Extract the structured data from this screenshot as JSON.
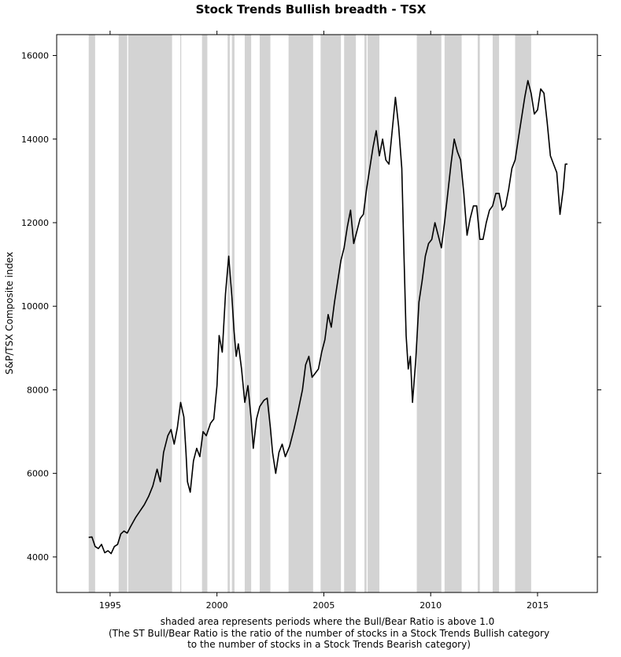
{
  "chart_data": {
    "type": "line",
    "title": "Stock Trends Bullish breadth - TSX",
    "ylabel": "S&P/TSX Composite index",
    "xlabel_lines": [
      "shaded area represents periods where the Bull/Bear Ratio is above 1.0",
      "(The ST Bull/Bear Ratio is the ratio of the number of stocks in a Stock Trends Bullish category",
      "to the number of stocks in a Stock Trends Bearish category)"
    ],
    "xlim": [
      1992.5,
      2017.8
    ],
    "ylim": [
      3150,
      16500
    ],
    "x_ticks": [
      1995,
      2000,
      2005,
      2010,
      2015
    ],
    "x_tick_labels": [
      "1995",
      "2000",
      "2005",
      "2010",
      "2015"
    ],
    "y_ticks": [
      4000,
      6000,
      8000,
      10000,
      12000,
      14000,
      16000
    ],
    "y_tick_labels": [
      "4000",
      "6000",
      "8000",
      "10000",
      "12000",
      "14000",
      "16000"
    ],
    "grid": false,
    "series": [
      {
        "name": "S&P/TSX Composite index",
        "color": "#000000",
        "points": [
          [
            1994.0,
            4470
          ],
          [
            1994.15,
            4480
          ],
          [
            1994.3,
            4250
          ],
          [
            1994.45,
            4200
          ],
          [
            1994.6,
            4300
          ],
          [
            1994.75,
            4100
          ],
          [
            1994.9,
            4150
          ],
          [
            1995.05,
            4080
          ],
          [
            1995.2,
            4250
          ],
          [
            1995.35,
            4300
          ],
          [
            1995.5,
            4550
          ],
          [
            1995.65,
            4620
          ],
          [
            1995.8,
            4570
          ],
          [
            1995.95,
            4720
          ],
          [
            1996.2,
            4950
          ],
          [
            1996.4,
            5100
          ],
          [
            1996.6,
            5250
          ],
          [
            1996.8,
            5450
          ],
          [
            1997.0,
            5700
          ],
          [
            1997.2,
            6100
          ],
          [
            1997.35,
            5800
          ],
          [
            1997.5,
            6500
          ],
          [
            1997.7,
            6900
          ],
          [
            1997.85,
            7050
          ],
          [
            1998.0,
            6700
          ],
          [
            1998.15,
            7100
          ],
          [
            1998.3,
            7700
          ],
          [
            1998.45,
            7350
          ],
          [
            1998.55,
            6500
          ],
          [
            1998.62,
            5800
          ],
          [
            1998.75,
            5550
          ],
          [
            1998.9,
            6300
          ],
          [
            1999.05,
            6600
          ],
          [
            1999.2,
            6400
          ],
          [
            1999.35,
            7000
          ],
          [
            1999.5,
            6900
          ],
          [
            1999.7,
            7200
          ],
          [
            1999.85,
            7300
          ],
          [
            2000.0,
            8100
          ],
          [
            2000.1,
            9300
          ],
          [
            2000.25,
            8900
          ],
          [
            2000.4,
            10300
          ],
          [
            2000.55,
            11200
          ],
          [
            2000.7,
            10200
          ],
          [
            2000.8,
            9400
          ],
          [
            2000.9,
            8800
          ],
          [
            2001.0,
            9100
          ],
          [
            2001.15,
            8500
          ],
          [
            2001.3,
            7700
          ],
          [
            2001.45,
            8100
          ],
          [
            2001.6,
            7300
          ],
          [
            2001.7,
            6600
          ],
          [
            2001.85,
            7300
          ],
          [
            2002.0,
            7600
          ],
          [
            2002.2,
            7750
          ],
          [
            2002.35,
            7800
          ],
          [
            2002.5,
            7100
          ],
          [
            2002.6,
            6500
          ],
          [
            2002.75,
            6000
          ],
          [
            2002.9,
            6500
          ],
          [
            2003.05,
            6700
          ],
          [
            2003.2,
            6400
          ],
          [
            2003.4,
            6650
          ],
          [
            2003.6,
            7050
          ],
          [
            2003.8,
            7500
          ],
          [
            2004.0,
            8000
          ],
          [
            2004.15,
            8600
          ],
          [
            2004.3,
            8800
          ],
          [
            2004.45,
            8300
          ],
          [
            2004.6,
            8400
          ],
          [
            2004.75,
            8500
          ],
          [
            2004.9,
            8900
          ],
          [
            2005.05,
            9200
          ],
          [
            2005.2,
            9800
          ],
          [
            2005.35,
            9500
          ],
          [
            2005.5,
            10100
          ],
          [
            2005.65,
            10600
          ],
          [
            2005.8,
            11100
          ],
          [
            2005.95,
            11400
          ],
          [
            2006.1,
            11900
          ],
          [
            2006.25,
            12300
          ],
          [
            2006.4,
            11500
          ],
          [
            2006.55,
            11800
          ],
          [
            2006.7,
            12100
          ],
          [
            2006.85,
            12200
          ],
          [
            2007.0,
            12800
          ],
          [
            2007.15,
            13300
          ],
          [
            2007.3,
            13800
          ],
          [
            2007.45,
            14200
          ],
          [
            2007.6,
            13600
          ],
          [
            2007.75,
            14000
          ],
          [
            2007.9,
            13500
          ],
          [
            2008.05,
            13400
          ],
          [
            2008.2,
            14200
          ],
          [
            2008.35,
            15000
          ],
          [
            2008.5,
            14300
          ],
          [
            2008.65,
            13300
          ],
          [
            2008.75,
            11200
          ],
          [
            2008.85,
            9300
          ],
          [
            2008.95,
            8500
          ],
          [
            2009.05,
            8800
          ],
          [
            2009.15,
            7700
          ],
          [
            2009.3,
            8700
          ],
          [
            2009.45,
            10100
          ],
          [
            2009.6,
            10600
          ],
          [
            2009.75,
            11200
          ],
          [
            2009.9,
            11500
          ],
          [
            2010.05,
            11600
          ],
          [
            2010.2,
            12000
          ],
          [
            2010.35,
            11700
          ],
          [
            2010.5,
            11400
          ],
          [
            2010.65,
            12000
          ],
          [
            2010.8,
            12700
          ],
          [
            2010.95,
            13400
          ],
          [
            2011.1,
            14000
          ],
          [
            2011.25,
            13700
          ],
          [
            2011.4,
            13500
          ],
          [
            2011.55,
            12700
          ],
          [
            2011.7,
            11700
          ],
          [
            2011.85,
            12100
          ],
          [
            2012.0,
            12400
          ],
          [
            2012.15,
            12400
          ],
          [
            2012.3,
            11600
          ],
          [
            2012.45,
            11600
          ],
          [
            2012.6,
            12000
          ],
          [
            2012.75,
            12300
          ],
          [
            2012.9,
            12400
          ],
          [
            2013.05,
            12700
          ],
          [
            2013.2,
            12700
          ],
          [
            2013.35,
            12300
          ],
          [
            2013.5,
            12400
          ],
          [
            2013.65,
            12800
          ],
          [
            2013.8,
            13300
          ],
          [
            2013.95,
            13500
          ],
          [
            2014.1,
            14000
          ],
          [
            2014.25,
            14500
          ],
          [
            2014.4,
            15000
          ],
          [
            2014.55,
            15400
          ],
          [
            2014.7,
            15100
          ],
          [
            2014.85,
            14600
          ],
          [
            2015.0,
            14700
          ],
          [
            2015.15,
            15200
          ],
          [
            2015.3,
            15100
          ],
          [
            2015.45,
            14400
          ],
          [
            2015.6,
            13600
          ],
          [
            2015.75,
            13400
          ],
          [
            2015.9,
            13200
          ],
          [
            2016.05,
            12200
          ],
          [
            2016.2,
            12800
          ],
          [
            2016.3,
            13400
          ],
          [
            2016.4,
            13400
          ]
        ]
      }
    ],
    "shaded_periods": [
      [
        1994.0,
        1994.3
      ],
      [
        1995.4,
        1995.8
      ],
      [
        1995.85,
        1997.9
      ],
      [
        1998.28,
        1998.33
      ],
      [
        1999.3,
        1999.55
      ],
      [
        2000.5,
        2000.6
      ],
      [
        2000.7,
        2000.82
      ],
      [
        2001.3,
        2001.6
      ],
      [
        2002.0,
        2002.5
      ],
      [
        2003.35,
        2004.5
      ],
      [
        2004.85,
        2005.8
      ],
      [
        2005.95,
        2006.5
      ],
      [
        2006.9,
        2007.0
      ],
      [
        2007.05,
        2007.6
      ],
      [
        2009.35,
        2010.5
      ],
      [
        2010.65,
        2011.45
      ],
      [
        2012.2,
        2012.3
      ],
      [
        2012.9,
        2013.2
      ],
      [
        2013.95,
        2014.7
      ]
    ],
    "shade_color": "#d3d3d3",
    "line_color": "#000000"
  }
}
